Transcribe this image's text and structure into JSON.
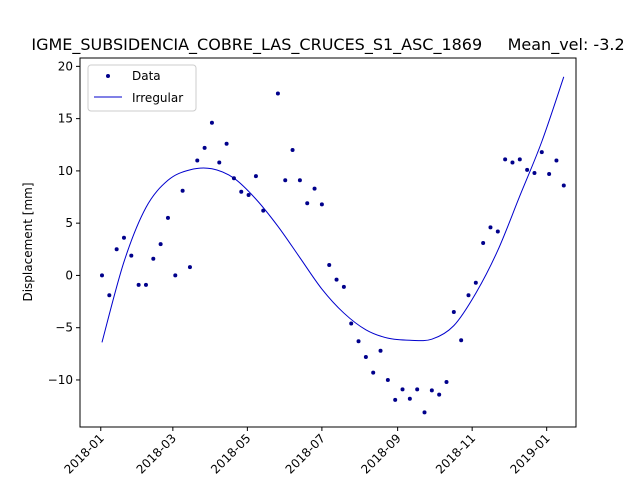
{
  "chart_data": {
    "type": "scatter",
    "title": "IGME_SUBSIDENCIA_COBRE_LAS_CRUCES_S1_ASC_1869     Mean_vel: -3.2",
    "xlabel": "",
    "ylabel": "Displacement [mm]",
    "xlim": [
      "2017-12-15",
      "2019-01-25"
    ],
    "ylim": [
      -14.5,
      20.8
    ],
    "x_ticks": [
      "2018-01",
      "2018-03",
      "2018-05",
      "2018-07",
      "2018-09",
      "2018-11",
      "2019-01"
    ],
    "y_ticks": [
      -10,
      -5,
      0,
      5,
      10,
      15,
      20
    ],
    "grid": false,
    "legend_position": "top-left",
    "colors": {
      "series": "#00008b",
      "fit": "#0000cd"
    },
    "series": [
      {
        "name": "Data",
        "style": "dot",
        "points": [
          [
            "2018-01-02",
            0.0
          ],
          [
            "2018-01-08",
            -1.9
          ],
          [
            "2018-01-14",
            2.5
          ],
          [
            "2018-01-20",
            3.6
          ],
          [
            "2018-01-26",
            1.9
          ],
          [
            "2018-02-01",
            -0.9
          ],
          [
            "2018-02-07",
            -0.9
          ],
          [
            "2018-02-13",
            1.6
          ],
          [
            "2018-02-19",
            3.0
          ],
          [
            "2018-02-25",
            5.5
          ],
          [
            "2018-03-03",
            0.0
          ],
          [
            "2018-03-09",
            8.1
          ],
          [
            "2018-03-15",
            0.8
          ],
          [
            "2018-03-21",
            11.0
          ],
          [
            "2018-03-27",
            12.2
          ],
          [
            "2018-04-02",
            14.6
          ],
          [
            "2018-04-08",
            10.8
          ],
          [
            "2018-04-14",
            12.6
          ],
          [
            "2018-04-20",
            9.3
          ],
          [
            "2018-04-26",
            8.0
          ],
          [
            "2018-05-02",
            7.7
          ],
          [
            "2018-05-08",
            9.5
          ],
          [
            "2018-05-14",
            6.2
          ],
          [
            "2018-05-26",
            17.4
          ],
          [
            "2018-06-01",
            9.1
          ],
          [
            "2018-06-07",
            12.0
          ],
          [
            "2018-06-13",
            9.1
          ],
          [
            "2018-06-19",
            6.9
          ],
          [
            "2018-06-25",
            8.3
          ],
          [
            "2018-07-01",
            6.8
          ],
          [
            "2018-07-07",
            1.0
          ],
          [
            "2018-07-13",
            -0.4
          ],
          [
            "2018-07-19",
            -1.1
          ],
          [
            "2018-07-25",
            -4.6
          ],
          [
            "2018-07-31",
            -6.3
          ],
          [
            "2018-08-06",
            -7.8
          ],
          [
            "2018-08-12",
            -9.3
          ],
          [
            "2018-08-18",
            -7.2
          ],
          [
            "2018-08-24",
            -10.0
          ],
          [
            "2018-08-30",
            -11.9
          ],
          [
            "2018-09-05",
            -10.9
          ],
          [
            "2018-09-11",
            -11.8
          ],
          [
            "2018-09-17",
            -10.9
          ],
          [
            "2018-09-23",
            -13.1
          ],
          [
            "2018-09-29",
            -11.0
          ],
          [
            "2018-10-05",
            -11.4
          ],
          [
            "2018-10-11",
            -10.2
          ],
          [
            "2018-10-17",
            -3.5
          ],
          [
            "2018-10-23",
            -6.2
          ],
          [
            "2018-10-29",
            -1.9
          ],
          [
            "2018-11-04",
            -0.7
          ],
          [
            "2018-11-10",
            3.1
          ],
          [
            "2018-11-16",
            4.6
          ],
          [
            "2018-11-22",
            4.2
          ],
          [
            "2018-11-28",
            11.1
          ],
          [
            "2018-12-04",
            10.8
          ],
          [
            "2018-12-10",
            11.1
          ],
          [
            "2018-12-16",
            10.1
          ],
          [
            "2018-12-22",
            9.8
          ],
          [
            "2018-12-28",
            11.8
          ],
          [
            "2019-01-03",
            9.7
          ],
          [
            "2019-01-09",
            11.0
          ],
          [
            "2019-01-15",
            8.6
          ]
        ]
      },
      {
        "name": "Irregular",
        "style": "line",
        "points": [
          [
            "2018-01-02",
            -6.4
          ],
          [
            "2018-01-20",
            1.3
          ],
          [
            "2018-02-07",
            6.5
          ],
          [
            "2018-02-25",
            9.1
          ],
          [
            "2018-03-15",
            10.1
          ],
          [
            "2018-04-02",
            10.2
          ],
          [
            "2018-04-20",
            9.3
          ],
          [
            "2018-05-08",
            7.3
          ],
          [
            "2018-05-26",
            4.7
          ],
          [
            "2018-06-13",
            1.7
          ],
          [
            "2018-07-01",
            -1.3
          ],
          [
            "2018-07-19",
            -3.6
          ],
          [
            "2018-08-06",
            -5.2
          ],
          [
            "2018-08-24",
            -6.0
          ],
          [
            "2018-09-11",
            -6.2
          ],
          [
            "2018-09-29",
            -6.1
          ],
          [
            "2018-10-17",
            -4.8
          ],
          [
            "2018-11-04",
            -1.7
          ],
          [
            "2018-11-22",
            2.4
          ],
          [
            "2018-12-10",
            7.6
          ],
          [
            "2018-12-28",
            12.8
          ],
          [
            "2019-01-15",
            19.0
          ]
        ]
      }
    ]
  }
}
